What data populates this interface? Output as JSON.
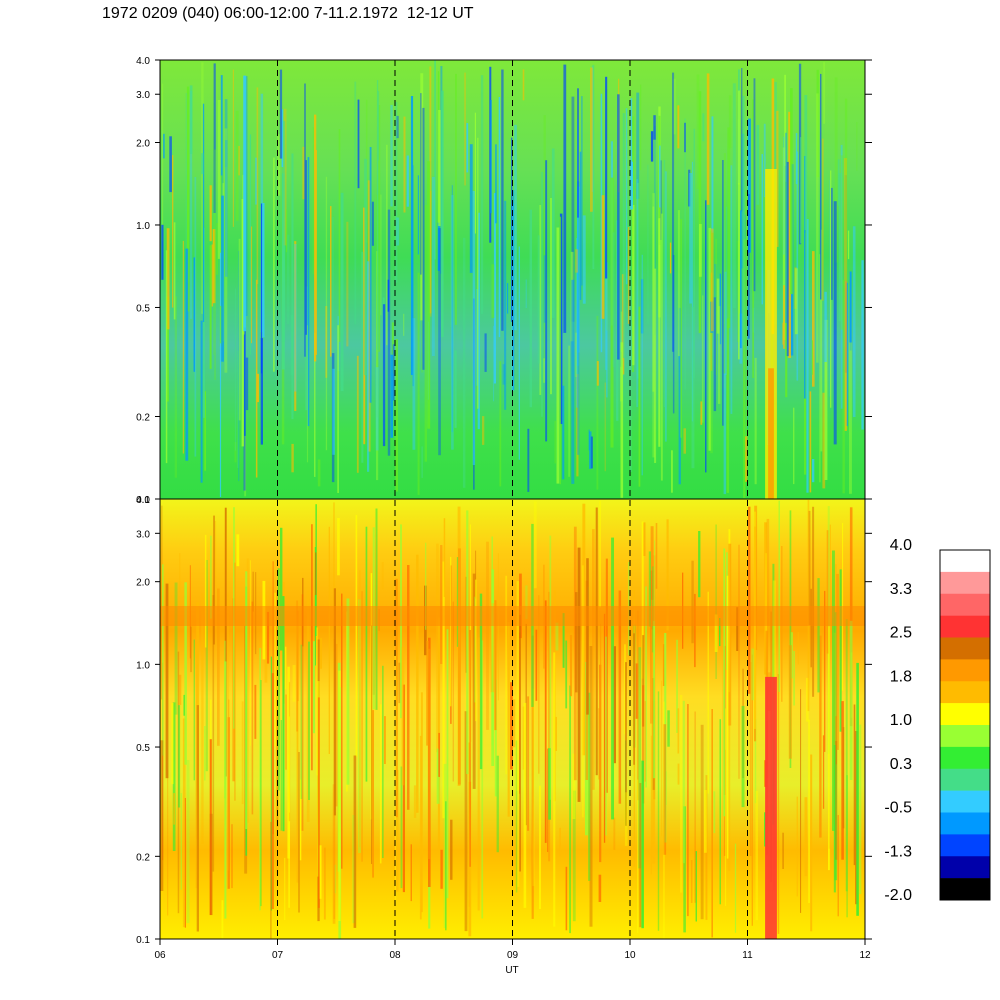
{
  "title": "1972 0209 (040) 06:00-12:00 7-11.2.1972  12-12 UT",
  "chart_data": [
    {
      "type": "heatmap",
      "panel": "top",
      "y_scale": "log",
      "ylim": [
        0.1,
        4.0
      ],
      "y_ticks": [
        {
          "value": 0.1,
          "label": "0.1"
        },
        {
          "value": 0.2,
          "label": "0.2"
        },
        {
          "value": 0.5,
          "label": "0.5"
        },
        {
          "value": 1.0,
          "label": "1.0"
        },
        {
          "value": 2.0,
          "label": "2.0"
        },
        {
          "value": 3.0,
          "label": "3.0"
        },
        {
          "value": 4.0,
          "label": "4.0"
        }
      ],
      "xlim": [
        6,
        12
      ],
      "dominant_level": 0.3,
      "features": [
        {
          "description_level": "green background",
          "level": 0.3
        },
        {
          "x_start": 11.15,
          "x_end": 11.25,
          "y_max": 1.6,
          "level": 1.2
        }
      ]
    },
    {
      "type": "heatmap",
      "panel": "bottom",
      "y_scale": "log",
      "ylim": [
        0.1,
        4.0
      ],
      "y_ticks": [
        {
          "value": 0.1,
          "label": "0.1"
        },
        {
          "value": 0.2,
          "label": "0.2"
        },
        {
          "value": 0.5,
          "label": "0.5"
        },
        {
          "value": 1.0,
          "label": "1.0"
        },
        {
          "value": 2.0,
          "label": "2.0"
        },
        {
          "value": 3.0,
          "label": "3.0"
        },
        {
          "value": 4.0,
          "label": "4.0"
        }
      ],
      "xlim": [
        6,
        12
      ],
      "dominant_level": 1.4,
      "features": [
        {
          "y_center": 1.5,
          "level": 1.9
        },
        {
          "x_start": 11.15,
          "x_end": 11.25,
          "y_max": 0.9,
          "level": 2.8
        }
      ],
      "x_ticks": [
        {
          "value": 6,
          "label": "06"
        },
        {
          "value": 7,
          "label": "07"
        },
        {
          "value": 8,
          "label": "08"
        },
        {
          "value": 9,
          "label": "09"
        },
        {
          "value": 10,
          "label": "10"
        },
        {
          "value": 11,
          "label": "11"
        },
        {
          "value": 12,
          "label": "12"
        }
      ],
      "xlabel": "UT"
    }
  ],
  "dashed_hour_lines": [
    7,
    8,
    9,
    10,
    11
  ],
  "colorbar": {
    "labels": [
      "4.0",
      "3.3",
      "2.5",
      "1.8",
      "1.0",
      "0.3",
      "-0.5",
      "-1.3",
      "-2.0"
    ],
    "colors": [
      "#ffffff",
      "#ff9999",
      "#ff6666",
      "#ff3333",
      "#d46f00",
      "#ff9900",
      "#ffbb00",
      "#ffff00",
      "#99ff33",
      "#33ee33",
      "#44dd88",
      "#33ccff",
      "#0099ff",
      "#0044ff",
      "#0000aa",
      "#000000"
    ]
  }
}
